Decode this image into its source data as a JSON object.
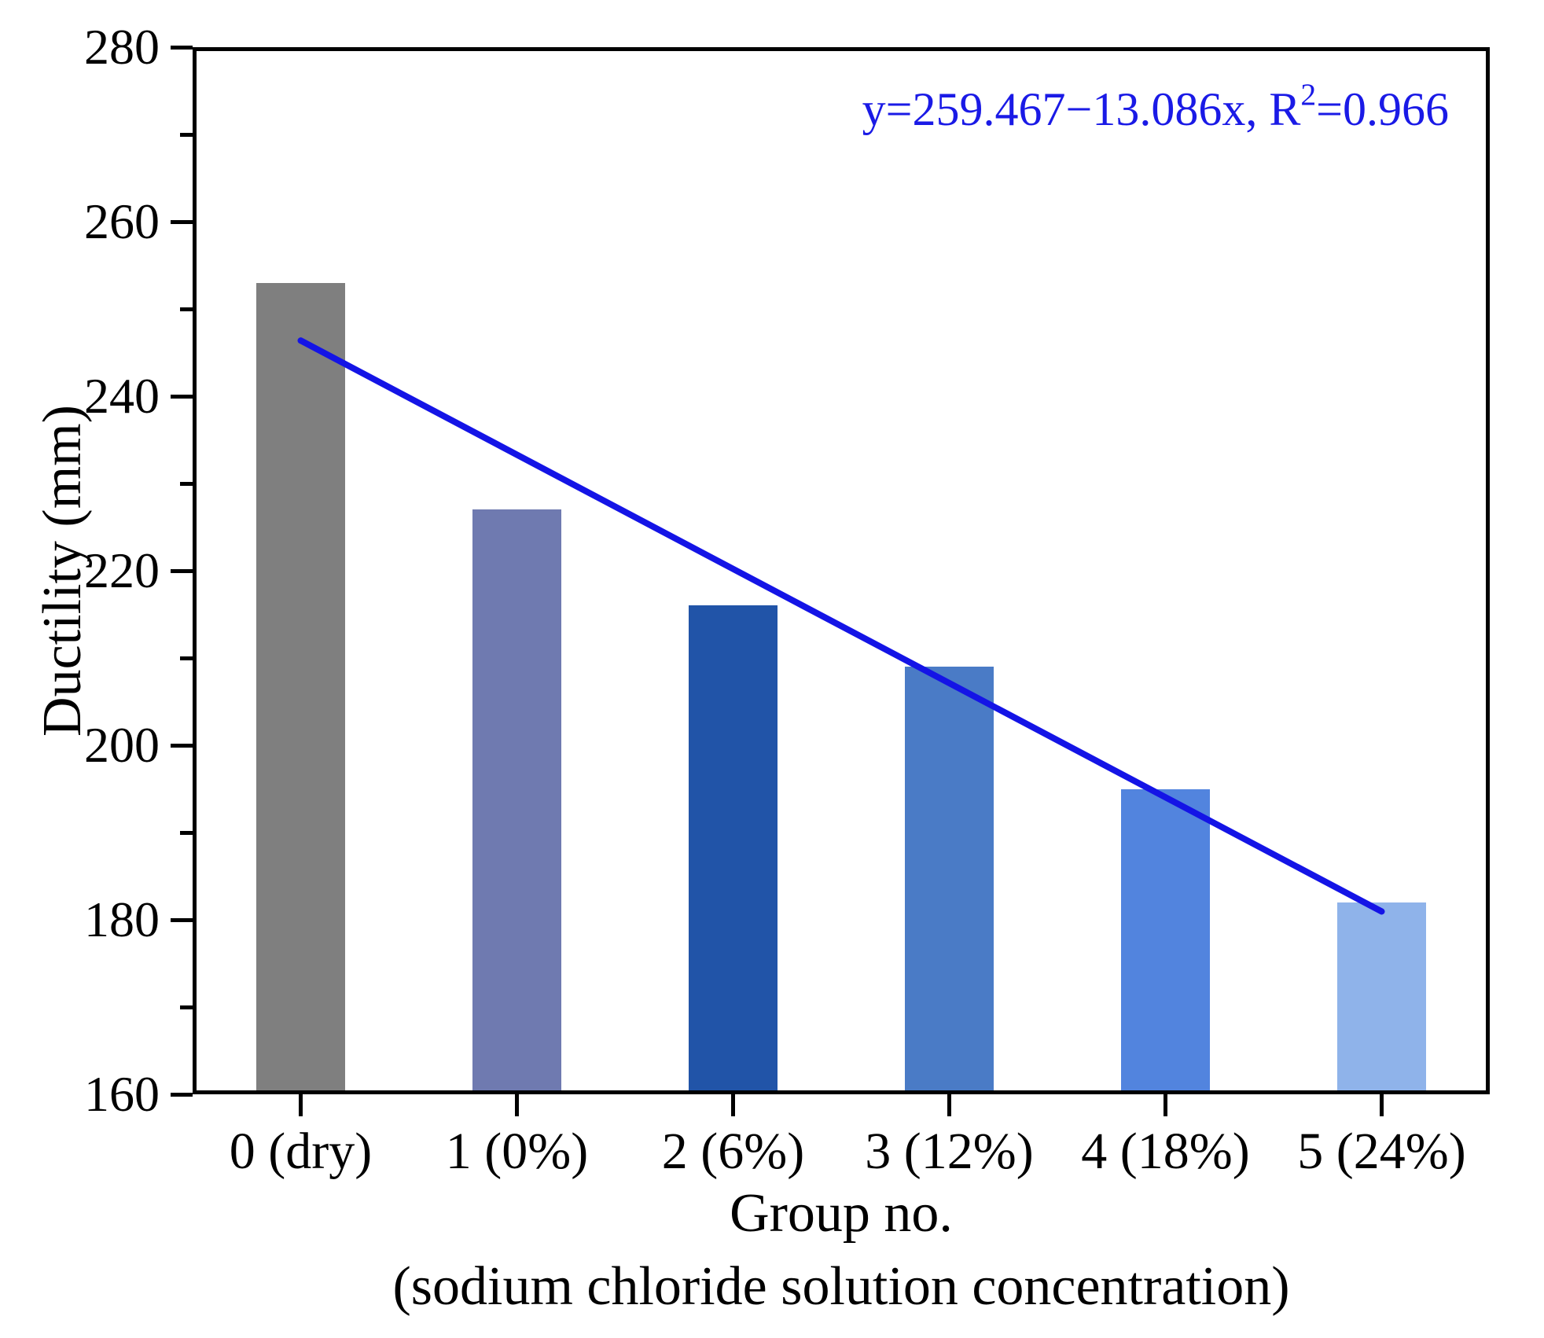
{
  "figure": {
    "background": "#ffffff",
    "axis_color": "#000000"
  },
  "chart_data": {
    "type": "bar",
    "title": "",
    "ylabel": "Ductility (mm)",
    "xlabel_line1": "Group no.",
    "xlabel_line2": "(sodium chloride solution concentration)",
    "categories": [
      "0 (dry)",
      "1 (0%)",
      "2 (6%)",
      "3 (12%)",
      "4 (18%)",
      "5 (24%)"
    ],
    "values": [
      253,
      227,
      216,
      209,
      195,
      182
    ],
    "bar_colors": [
      "#7f7f7f",
      "#6f7ab0",
      "#2154a8",
      "#4a7bc6",
      "#5284de",
      "#8fb3ea"
    ],
    "ylim": [
      160,
      280
    ],
    "yticks": [
      160,
      180,
      200,
      220,
      240,
      260,
      280
    ],
    "yticks_minor": [
      170,
      190,
      210,
      230,
      250,
      270
    ],
    "grid": false,
    "legend": false,
    "trendline": {
      "color": "#1414e6",
      "equation_full": "y=259.467−13.086x, R²=0.966",
      "y_at_first_bar": 246.38,
      "y_at_last_bar": 180.95
    },
    "annotation": {
      "prefix": "y=259.467−13.086x, R",
      "superscript": "2",
      "suffix": "=0.966",
      "color": "#1a1ae6"
    }
  }
}
